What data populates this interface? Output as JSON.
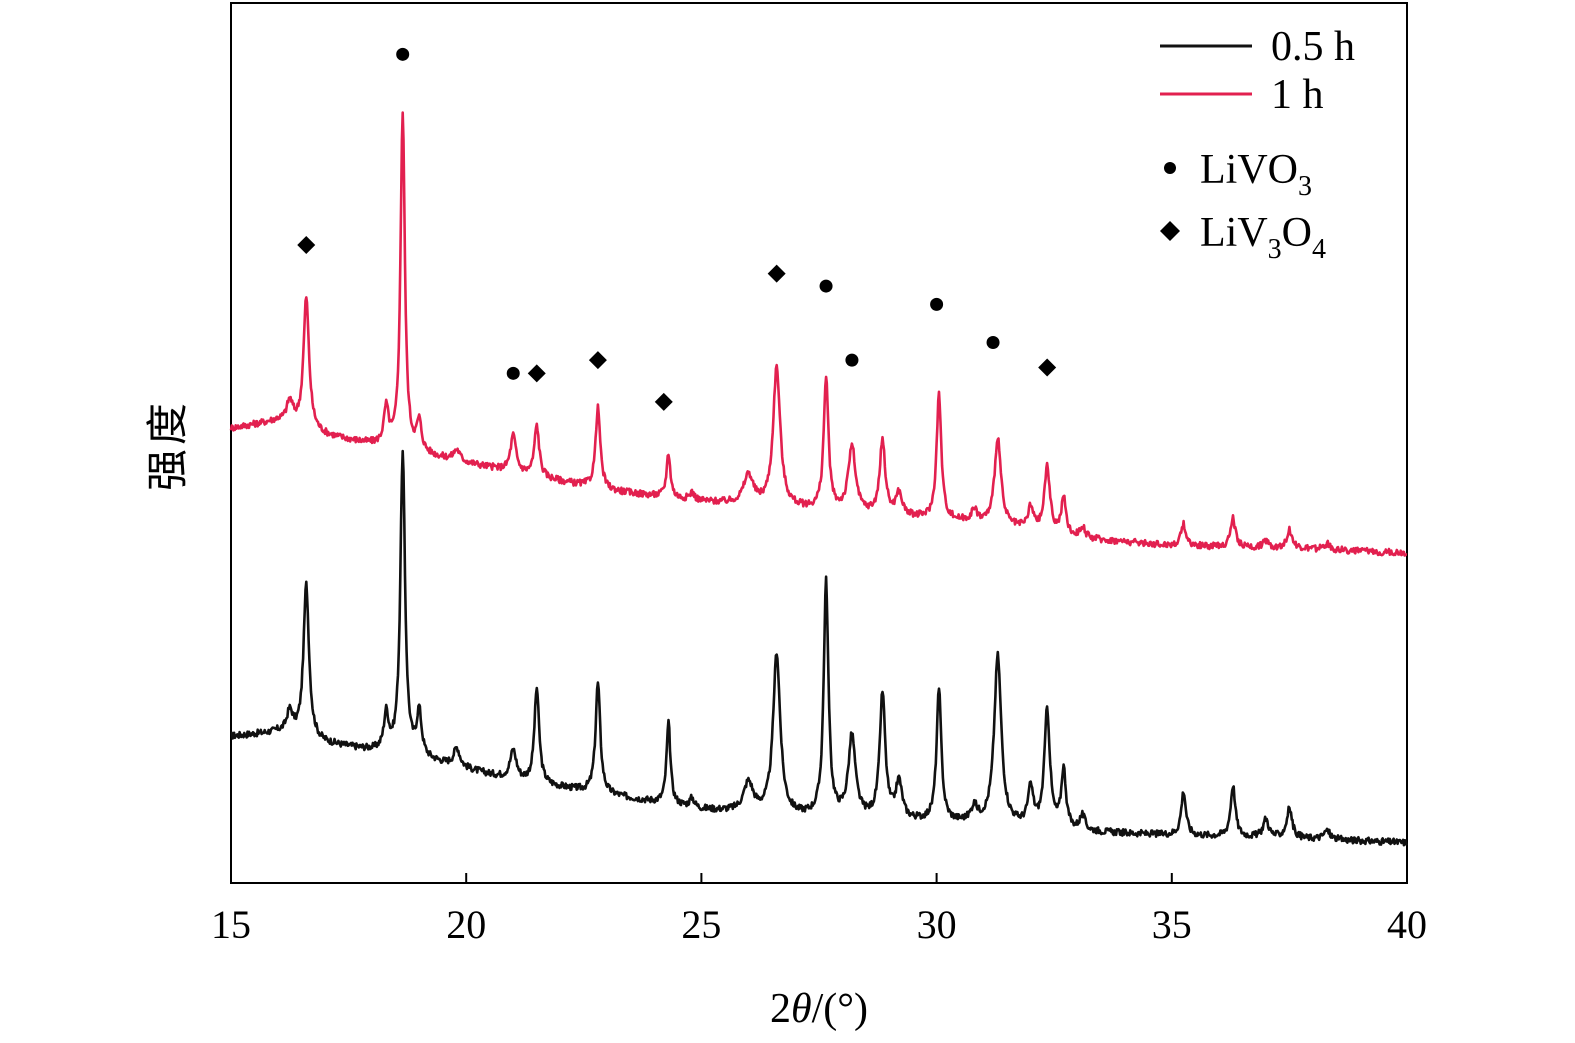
{
  "chart_data": {
    "type": "line",
    "title": "",
    "xlabel": {
      "prefix": "2",
      "theta": "θ",
      "suffix": "/(°)"
    },
    "ylabel": "强度",
    "xlim": [
      15,
      40
    ],
    "xticks": [
      15,
      20,
      25,
      30,
      35,
      40
    ],
    "xtick_labels": [
      "15",
      "20",
      "25",
      "30",
      "35",
      "40"
    ],
    "y_ticks_shown": false,
    "grid": false,
    "legend": {
      "placement": "top-right",
      "series": [
        {
          "label": "0.5 h",
          "color": "#111111"
        },
        {
          "label": "1 h",
          "color": "#e2204f"
        }
      ],
      "markers": [
        {
          "symbol": "circle",
          "label_main": "LiVO",
          "label_sub": "3",
          "label_tail": "",
          "label_sub2": ""
        },
        {
          "symbol": "diamond",
          "label_main": "LiV",
          "label_sub": "3",
          "label_tail": "O",
          "label_sub2": "4"
        }
      ]
    },
    "series": [
      {
        "name": "0.5 h",
        "color": "#111111",
        "baseline": [
          [
            15,
            0.2
          ],
          [
            16,
            0.205
          ],
          [
            17,
            0.19
          ],
          [
            19,
            0.17
          ],
          [
            21,
            0.14
          ],
          [
            23,
            0.12
          ],
          [
            25,
            0.1
          ],
          [
            27,
            0.09
          ],
          [
            29,
            0.085
          ],
          [
            31,
            0.08
          ],
          [
            33,
            0.07
          ],
          [
            35,
            0.065
          ],
          [
            38,
            0.06
          ],
          [
            40,
            0.055
          ]
        ],
        "peaks": [
          {
            "x": 16.25,
            "h": 0.03,
            "w": 0.08
          },
          {
            "x": 16.6,
            "h": 0.21,
            "w": 0.07
          },
          {
            "x": 18.3,
            "h": 0.05,
            "w": 0.06
          },
          {
            "x": 18.65,
            "h": 0.41,
            "w": 0.06
          },
          {
            "x": 19.0,
            "h": 0.06,
            "w": 0.06
          },
          {
            "x": 19.8,
            "h": 0.025,
            "w": 0.08
          },
          {
            "x": 21.0,
            "h": 0.04,
            "w": 0.08
          },
          {
            "x": 21.5,
            "h": 0.13,
            "w": 0.06
          },
          {
            "x": 22.8,
            "h": 0.15,
            "w": 0.06
          },
          {
            "x": 24.3,
            "h": 0.11,
            "w": 0.05
          },
          {
            "x": 24.8,
            "h": 0.012,
            "w": 0.06
          },
          {
            "x": 26.0,
            "h": 0.04,
            "w": 0.12
          },
          {
            "x": 26.6,
            "h": 0.22,
            "w": 0.09
          },
          {
            "x": 27.65,
            "h": 0.32,
            "w": 0.06
          },
          {
            "x": 28.2,
            "h": 0.11,
            "w": 0.09
          },
          {
            "x": 28.85,
            "h": 0.17,
            "w": 0.07
          },
          {
            "x": 29.2,
            "h": 0.05,
            "w": 0.08
          },
          {
            "x": 30.05,
            "h": 0.18,
            "w": 0.06
          },
          {
            "x": 30.8,
            "h": 0.02,
            "w": 0.08
          },
          {
            "x": 31.3,
            "h": 0.23,
            "w": 0.09
          },
          {
            "x": 32.0,
            "h": 0.05,
            "w": 0.07
          },
          {
            "x": 32.35,
            "h": 0.16,
            "w": 0.07
          },
          {
            "x": 32.7,
            "h": 0.08,
            "w": 0.06
          },
          {
            "x": 33.1,
            "h": 0.02,
            "w": 0.07
          },
          {
            "x": 35.25,
            "h": 0.06,
            "w": 0.06
          },
          {
            "x": 36.3,
            "h": 0.07,
            "w": 0.06
          },
          {
            "x": 37.0,
            "h": 0.025,
            "w": 0.07
          },
          {
            "x": 37.5,
            "h": 0.04,
            "w": 0.07
          },
          {
            "x": 38.3,
            "h": 0.012,
            "w": 0.08
          }
        ]
      },
      {
        "name": "1 h",
        "color": "#e2204f",
        "baseline": [
          [
            15,
            0.62
          ],
          [
            16,
            0.63
          ],
          [
            17,
            0.61
          ],
          [
            19,
            0.585
          ],
          [
            21,
            0.56
          ],
          [
            23,
            0.535
          ],
          [
            25,
            0.52
          ],
          [
            27,
            0.51
          ],
          [
            29,
            0.5
          ],
          [
            31,
            0.49
          ],
          [
            33,
            0.47
          ],
          [
            35,
            0.46
          ],
          [
            38,
            0.455
          ],
          [
            40,
            0.45
          ]
        ],
        "peaks": [
          {
            "x": 16.25,
            "h": 0.03,
            "w": 0.08
          },
          {
            "x": 16.6,
            "h": 0.18,
            "w": 0.07
          },
          {
            "x": 18.3,
            "h": 0.05,
            "w": 0.06
          },
          {
            "x": 18.65,
            "h": 0.46,
            "w": 0.055
          },
          {
            "x": 19.0,
            "h": 0.04,
            "w": 0.06
          },
          {
            "x": 19.8,
            "h": 0.015,
            "w": 0.08
          },
          {
            "x": 21.0,
            "h": 0.05,
            "w": 0.07
          },
          {
            "x": 21.5,
            "h": 0.07,
            "w": 0.06
          },
          {
            "x": 22.8,
            "h": 0.11,
            "w": 0.06
          },
          {
            "x": 24.3,
            "h": 0.06,
            "w": 0.05
          },
          {
            "x": 24.8,
            "h": 0.01,
            "w": 0.06
          },
          {
            "x": 26.0,
            "h": 0.04,
            "w": 0.12
          },
          {
            "x": 26.6,
            "h": 0.19,
            "w": 0.09
          },
          {
            "x": 27.65,
            "h": 0.18,
            "w": 0.06
          },
          {
            "x": 28.2,
            "h": 0.09,
            "w": 0.09
          },
          {
            "x": 28.85,
            "h": 0.1,
            "w": 0.07
          },
          {
            "x": 29.2,
            "h": 0.03,
            "w": 0.08
          },
          {
            "x": 30.05,
            "h": 0.17,
            "w": 0.06
          },
          {
            "x": 30.8,
            "h": 0.015,
            "w": 0.08
          },
          {
            "x": 31.3,
            "h": 0.12,
            "w": 0.08
          },
          {
            "x": 32.0,
            "h": 0.03,
            "w": 0.07
          },
          {
            "x": 32.35,
            "h": 0.09,
            "w": 0.07
          },
          {
            "x": 32.7,
            "h": 0.05,
            "w": 0.06
          },
          {
            "x": 33.1,
            "h": 0.015,
            "w": 0.07
          },
          {
            "x": 35.25,
            "h": 0.03,
            "w": 0.06
          },
          {
            "x": 36.3,
            "h": 0.04,
            "w": 0.06
          },
          {
            "x": 37.0,
            "h": 0.01,
            "w": 0.07
          },
          {
            "x": 37.5,
            "h": 0.025,
            "w": 0.07
          },
          {
            "x": 38.3,
            "h": 0.008,
            "w": 0.08
          }
        ]
      }
    ],
    "annotations": [
      {
        "symbol": "diamond",
        "x": 16.6,
        "y": 0.87
      },
      {
        "symbol": "circle",
        "x": 18.65,
        "y": 1.13
      },
      {
        "symbol": "circle",
        "x": 21.0,
        "y": 0.695
      },
      {
        "symbol": "diamond",
        "x": 21.5,
        "y": 0.695
      },
      {
        "symbol": "diamond",
        "x": 22.8,
        "y": 0.713
      },
      {
        "symbol": "diamond",
        "x": 24.2,
        "y": 0.656
      },
      {
        "symbol": "diamond",
        "x": 26.6,
        "y": 0.831
      },
      {
        "symbol": "circle",
        "x": 27.65,
        "y": 0.814
      },
      {
        "symbol": "circle",
        "x": 28.2,
        "y": 0.713
      },
      {
        "symbol": "circle",
        "x": 30.0,
        "y": 0.789
      },
      {
        "symbol": "circle",
        "x": 31.2,
        "y": 0.737
      },
      {
        "symbol": "diamond",
        "x": 32.35,
        "y": 0.703
      }
    ]
  }
}
